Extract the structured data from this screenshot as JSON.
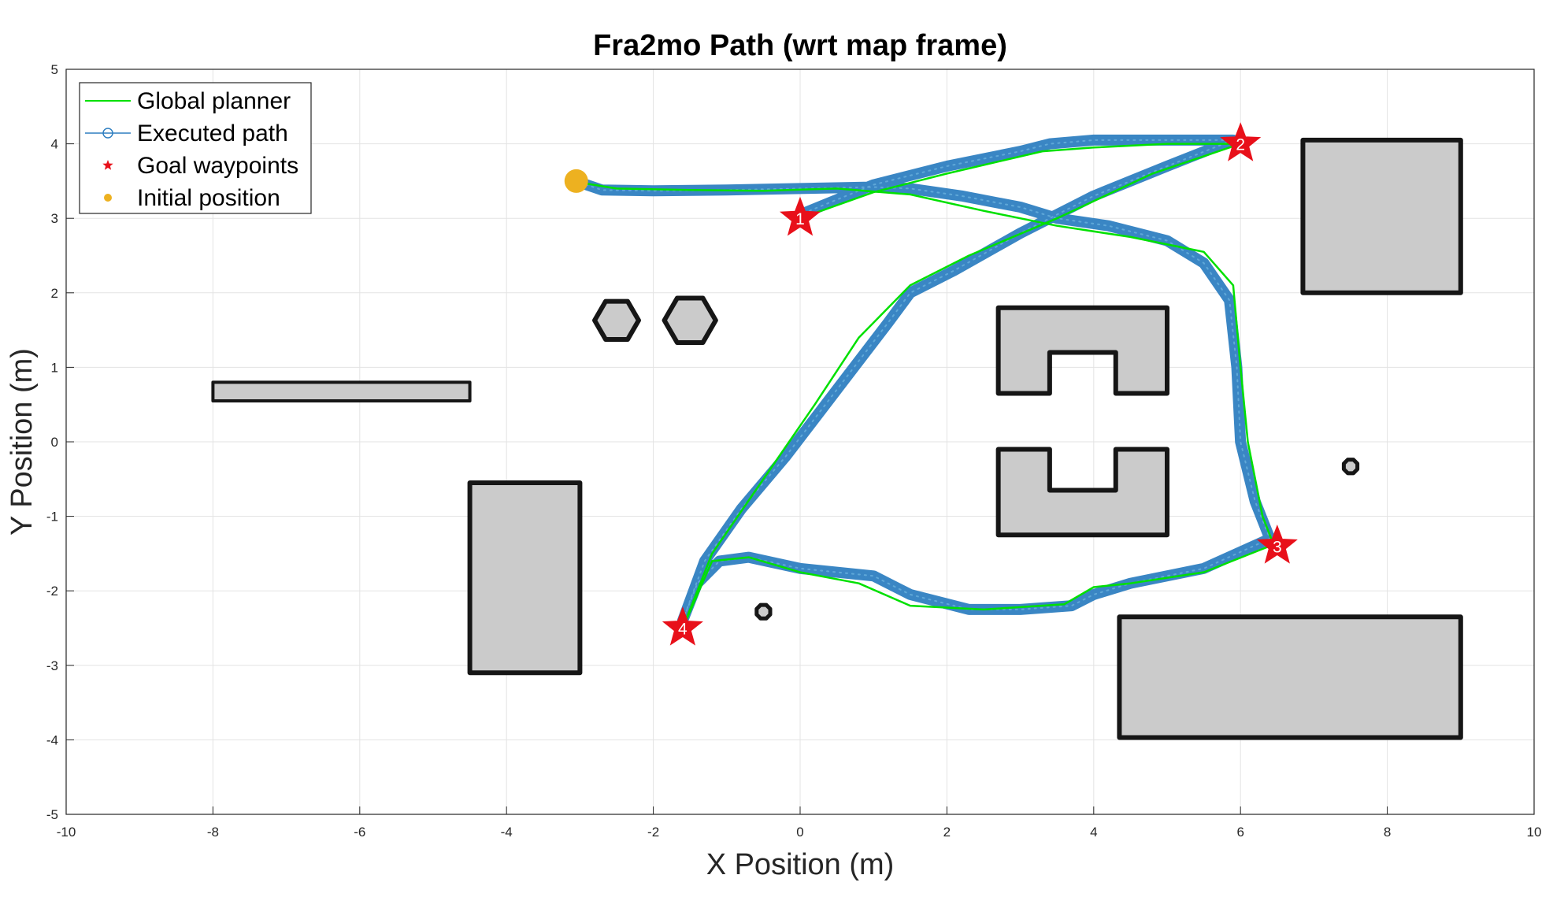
{
  "chart_data": {
    "type": "line",
    "title": "Fra2mo Path (wrt map frame)",
    "xlabel": "X Position (m)",
    "ylabel": "Y Position (m)",
    "xlim": [
      -10,
      10
    ],
    "ylim": [
      -5,
      5
    ],
    "xticks": [
      -10,
      -8,
      -6,
      -4,
      -2,
      0,
      2,
      4,
      6,
      8,
      10
    ],
    "yticks": [
      -5,
      -4,
      -3,
      -2,
      -1,
      0,
      1,
      2,
      3,
      4,
      5
    ],
    "grid": true,
    "legend_position": "top-left",
    "legend": [
      {
        "label": "Global planner",
        "marker": "line"
      },
      {
        "label": "Executed path",
        "marker": "circle-line"
      },
      {
        "label": "Goal waypoints",
        "marker": "star"
      },
      {
        "label": "Initial position",
        "marker": "dot"
      }
    ],
    "series": [
      {
        "name": "Global planner",
        "color": "#00e000",
        "points": [
          [
            -3.0,
            3.48
          ],
          [
            -2.5,
            3.4
          ],
          [
            -1.5,
            3.38
          ],
          [
            -0.5,
            3.37
          ],
          [
            0.5,
            3.4
          ],
          [
            1.5,
            3.32
          ],
          [
            2.5,
            3.1
          ],
          [
            3.5,
            2.9
          ],
          [
            4.5,
            2.75
          ],
          [
            5.5,
            2.55
          ],
          [
            5.9,
            2.1
          ],
          [
            6.0,
            1.0
          ],
          [
            6.1,
            0.0
          ],
          [
            6.3,
            -1.0
          ],
          [
            6.45,
            -1.38
          ],
          [
            6.45,
            -1.38
          ],
          [
            5.5,
            -1.75
          ],
          [
            4.5,
            -1.9
          ],
          [
            4.0,
            -1.95
          ],
          [
            3.6,
            -2.18
          ],
          [
            2.5,
            -2.25
          ],
          [
            1.5,
            -2.2
          ],
          [
            0.8,
            -1.9
          ],
          [
            0.0,
            -1.75
          ],
          [
            -0.7,
            -1.55
          ],
          [
            -1.2,
            -1.6
          ],
          [
            -1.6,
            -2.5
          ],
          [
            -1.6,
            -2.5
          ],
          [
            -1.2,
            -1.5
          ],
          [
            -0.5,
            -0.5
          ],
          [
            0.2,
            0.5
          ],
          [
            0.8,
            1.4
          ],
          [
            1.5,
            2.1
          ],
          [
            2.3,
            2.5
          ],
          [
            3.5,
            3.0
          ],
          [
            4.8,
            3.6
          ],
          [
            6.0,
            4.0
          ],
          [
            6.0,
            4.0
          ],
          [
            5.0,
            4.0
          ],
          [
            4.0,
            3.95
          ],
          [
            3.3,
            3.9
          ],
          [
            2.0,
            3.6
          ],
          [
            1.0,
            3.35
          ],
          [
            0.0,
            3.0
          ]
        ]
      },
      {
        "name": "Executed path",
        "color": "#2f7fc1",
        "points": [
          [
            -3.0,
            3.48
          ],
          [
            -2.7,
            3.38
          ],
          [
            -2.0,
            3.37
          ],
          [
            -1.0,
            3.38
          ],
          [
            0.0,
            3.4
          ],
          [
            1.0,
            3.42
          ],
          [
            1.5,
            3.4
          ],
          [
            2.2,
            3.3
          ],
          [
            3.0,
            3.15
          ],
          [
            3.5,
            3.0
          ],
          [
            4.2,
            2.9
          ],
          [
            5.0,
            2.7
          ],
          [
            5.5,
            2.4
          ],
          [
            5.85,
            1.9
          ],
          [
            5.95,
            1.0
          ],
          [
            6.0,
            0.0
          ],
          [
            6.2,
            -0.8
          ],
          [
            6.4,
            -1.3
          ],
          [
            6.4,
            -1.3
          ],
          [
            5.5,
            -1.7
          ],
          [
            4.5,
            -1.9
          ],
          [
            4.0,
            -2.05
          ],
          [
            3.7,
            -2.2
          ],
          [
            3.0,
            -2.25
          ],
          [
            2.3,
            -2.25
          ],
          [
            1.5,
            -2.05
          ],
          [
            1.0,
            -1.8
          ],
          [
            0.0,
            -1.7
          ],
          [
            -0.7,
            -1.55
          ],
          [
            -1.1,
            -1.6
          ],
          [
            -1.4,
            -1.9
          ],
          [
            -1.6,
            -2.4
          ],
          [
            -1.6,
            -2.4
          ],
          [
            -1.3,
            -1.6
          ],
          [
            -0.8,
            -0.9
          ],
          [
            -0.2,
            -0.2
          ],
          [
            0.5,
            0.7
          ],
          [
            1.2,
            1.6
          ],
          [
            1.5,
            2.0
          ],
          [
            2.1,
            2.3
          ],
          [
            3.0,
            2.8
          ],
          [
            4.0,
            3.3
          ],
          [
            5.0,
            3.7
          ],
          [
            5.9,
            4.05
          ],
          [
            5.9,
            4.05
          ],
          [
            5.0,
            4.05
          ],
          [
            4.0,
            4.05
          ],
          [
            3.4,
            4.0
          ],
          [
            3.0,
            3.9
          ],
          [
            2.0,
            3.7
          ],
          [
            1.0,
            3.45
          ],
          [
            0.0,
            3.05
          ]
        ]
      }
    ],
    "goal_waypoints": [
      {
        "label": "1",
        "x": 0.0,
        "y": 3.0
      },
      {
        "label": "2",
        "x": 6.0,
        "y": 4.0
      },
      {
        "label": "3",
        "x": 6.5,
        "y": -1.4
      },
      {
        "label": "4",
        "x": -1.6,
        "y": -2.5
      }
    ],
    "initial_position": {
      "x": -3.05,
      "y": 3.5
    },
    "map_obstacles": [
      {
        "name": "map-obstacle-hexagon-left",
        "kind": "hexagon",
        "cx": -2.5,
        "cy": 1.63,
        "r": 0.3
      },
      {
        "name": "map-obstacle-hexagon-right",
        "kind": "hexagon",
        "cx": -1.5,
        "cy": 1.63,
        "r": 0.35
      },
      {
        "name": "map-obstacle-wall-left",
        "kind": "wall",
        "x0": -8.0,
        "x1": -4.5,
        "y0": 0.55,
        "y1": 0.8
      },
      {
        "name": "map-obstacle-box-left",
        "kind": "rect",
        "x0": -4.5,
        "x1": -3.0,
        "y0": -3.1,
        "y1": -0.55
      },
      {
        "name": "map-obstacle-u-upper",
        "kind": "u-top",
        "x0": 2.7,
        "x1": 5.0,
        "y0": 0.65,
        "y1": 1.8,
        "ix0": 3.4,
        "ix1": 4.3,
        "iy": 1.2
      },
      {
        "name": "map-obstacle-u-lower",
        "kind": "u-bottom",
        "x0": 2.7,
        "x1": 5.0,
        "y0": -1.25,
        "y1": -0.1,
        "ix0": 3.4,
        "ix1": 4.3,
        "iy": -0.65
      },
      {
        "name": "map-obstacle-box-top-right",
        "kind": "rect",
        "x0": 6.85,
        "x1": 9.0,
        "y0": 2.0,
        "y1": 4.05
      },
      {
        "name": "map-obstacle-box-bottom-right",
        "kind": "rect",
        "x0": 4.35,
        "x1": 9.0,
        "y0": -3.97,
        "y1": -2.35
      },
      {
        "name": "map-obstacle-small-octagon-left",
        "kind": "small",
        "cx": -0.5,
        "cy": -2.28,
        "r": 0.1
      },
      {
        "name": "map-obstacle-small-octagon-right",
        "kind": "small",
        "cx": 7.5,
        "cy": -0.33,
        "r": 0.1
      }
    ]
  }
}
